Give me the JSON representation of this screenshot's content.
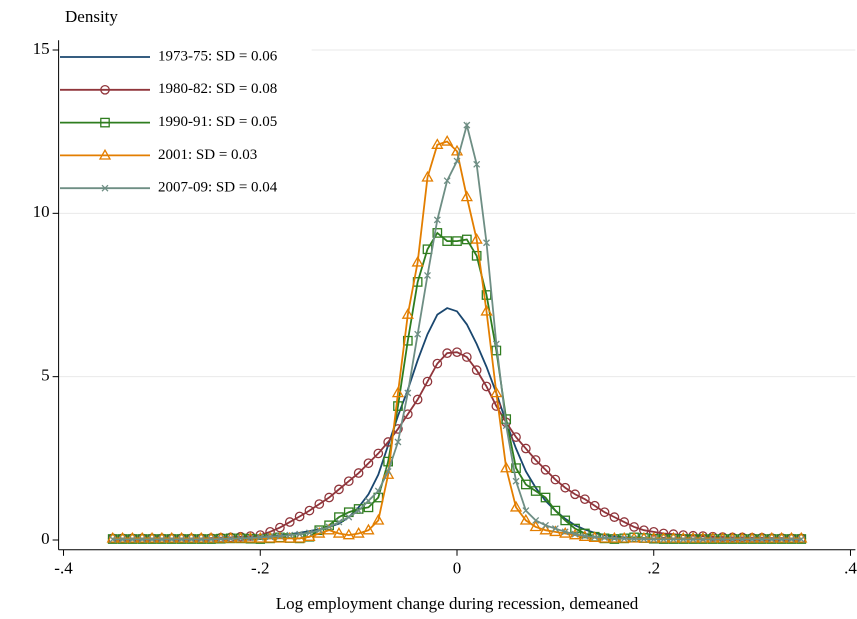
{
  "chart_data": {
    "type": "line",
    "y_label": "Density",
    "x_label": "Log employment change during recession, demeaned",
    "xlim": [
      -0.405,
      0.405
    ],
    "ylim": [
      -0.3,
      15.3
    ],
    "xticks": [
      {
        "value": -0.4,
        "label": "-.4"
      },
      {
        "value": -0.2,
        "label": "-.2"
      },
      0,
      {
        "value": 0.2,
        "label": ".2"
      },
      {
        "value": 0.4,
        "label": ".4"
      }
    ],
    "yticks": [
      0,
      5,
      10,
      15
    ],
    "grid": true,
    "legend": "top-left",
    "x": [
      -0.35,
      -0.34,
      -0.33,
      -0.32,
      -0.31,
      -0.3,
      -0.29,
      -0.28,
      -0.27,
      -0.26,
      -0.25,
      -0.24,
      -0.23,
      -0.22,
      -0.21,
      -0.2,
      -0.19,
      -0.18,
      -0.17,
      -0.16,
      -0.15,
      -0.14,
      -0.13,
      -0.12,
      -0.11,
      -0.1,
      -0.09,
      -0.08,
      -0.07,
      -0.06,
      -0.05,
      -0.04,
      -0.03,
      -0.02,
      -0.01,
      0,
      0.01,
      0.02,
      0.03,
      0.04,
      0.05,
      0.06,
      0.07,
      0.08,
      0.09,
      0.1,
      0.11,
      0.12,
      0.13,
      0.14,
      0.15,
      0.16,
      0.17,
      0.18,
      0.19,
      0.2,
      0.21,
      0.22,
      0.23,
      0.24,
      0.25,
      0.26,
      0.27,
      0.28,
      0.29,
      0.3,
      0.31,
      0.32,
      0.33,
      0.34,
      0.35
    ],
    "series": [
      {
        "name": "1973-75: SD = 0.06",
        "color": "#1a476f",
        "marker": "none",
        "values": [
          0.01,
          0.01,
          0.01,
          0.01,
          0.01,
          0.01,
          0.01,
          0.01,
          0.01,
          0.01,
          0.02,
          0.03,
          0.04,
          0.05,
          0.07,
          0.09,
          0.11,
          0.14,
          0.18,
          0.22,
          0.27,
          0.33,
          0.4,
          0.5,
          0.7,
          1.0,
          1.4,
          2.0,
          2.9,
          3.8,
          4.6,
          5.5,
          6.3,
          6.9,
          7.1,
          7.0,
          6.6,
          6.0,
          5.3,
          4.5,
          3.6,
          2.8,
          2.1,
          1.6,
          1.2,
          0.9,
          0.65,
          0.45,
          0.32,
          0.22,
          0.15,
          0.11,
          0.08,
          0.06,
          0.05,
          0.04,
          0.03,
          0.03,
          0.02,
          0.02,
          0.02,
          0.01,
          0.01,
          0.01,
          0.01,
          0.01,
          0.01,
          0.01,
          0.01,
          0.01,
          0.01
        ]
      },
      {
        "name": "1980-82: SD = 0.08",
        "color": "#90353b",
        "marker": "circle",
        "values": [
          0.05,
          0.05,
          0.05,
          0.05,
          0.05,
          0.05,
          0.05,
          0.05,
          0.05,
          0.05,
          0.06,
          0.07,
          0.08,
          0.1,
          0.12,
          0.15,
          0.25,
          0.38,
          0.55,
          0.72,
          0.9,
          1.1,
          1.3,
          1.55,
          1.8,
          2.05,
          2.35,
          2.65,
          3.0,
          3.4,
          3.85,
          4.3,
          4.85,
          5.4,
          5.72,
          5.75,
          5.6,
          5.2,
          4.7,
          4.1,
          3.6,
          3.15,
          2.8,
          2.45,
          2.15,
          1.85,
          1.6,
          1.4,
          1.25,
          1.05,
          0.85,
          0.7,
          0.55,
          0.4,
          0.3,
          0.25,
          0.2,
          0.18,
          0.15,
          0.13,
          0.12,
          0.1,
          0.09,
          0.08,
          0.08,
          0.07,
          0.07,
          0.06,
          0.06,
          0.05,
          0.05
        ]
      },
      {
        "name": "1990-91: SD = 0.05",
        "color": "#2f7d1f",
        "marker": "square",
        "values": [
          0.03,
          0.03,
          0.03,
          0.03,
          0.03,
          0.03,
          0.03,
          0.03,
          0.03,
          0.03,
          0.03,
          0.04,
          0.05,
          0.05,
          0.04,
          0.03,
          0.05,
          0.08,
          0.06,
          0.05,
          0.1,
          0.3,
          0.45,
          0.7,
          0.85,
          0.95,
          1.0,
          1.3,
          2.4,
          4.1,
          6.1,
          7.9,
          8.9,
          9.4,
          9.15,
          9.15,
          9.2,
          8.7,
          7.5,
          5.8,
          3.7,
          2.2,
          1.7,
          1.5,
          1.3,
          0.9,
          0.6,
          0.35,
          0.2,
          0.1,
          0.05,
          0.03,
          0.05,
          0.08,
          0.06,
          0.04,
          0.03,
          0.03,
          0.03,
          0.03,
          0.03,
          0.03,
          0.03,
          0.03,
          0.03,
          0.03,
          0.03,
          0.03,
          0.03,
          0.03,
          0.03
        ]
      },
      {
        "name": "2001: SD = 0.03",
        "color": "#e37e00",
        "marker": "triangle",
        "values": [
          0.05,
          0.05,
          0.05,
          0.05,
          0.05,
          0.05,
          0.05,
          0.05,
          0.05,
          0.05,
          0.05,
          0.05,
          0.05,
          0.05,
          0.05,
          0.05,
          0.05,
          0.05,
          0.05,
          0.05,
          0.1,
          0.2,
          0.3,
          0.2,
          0.15,
          0.2,
          0.3,
          0.6,
          2.0,
          4.5,
          6.9,
          8.5,
          11.1,
          12.1,
          12.2,
          11.9,
          10.5,
          9.2,
          7.0,
          4.5,
          2.2,
          1.0,
          0.6,
          0.4,
          0.3,
          0.25,
          0.2,
          0.15,
          0.1,
          0.07,
          0.05,
          0.05,
          0.05,
          0.05,
          0.05,
          0.05,
          0.05,
          0.05,
          0.05,
          0.05,
          0.05,
          0.05,
          0.05,
          0.05,
          0.05,
          0.05,
          0.05,
          0.05,
          0.05,
          0.05,
          0.05
        ]
      },
      {
        "name": "2007-09: SD = 0.04",
        "color": "#6e8e84",
        "marker": "x",
        "values": [
          0.02,
          0.02,
          0.02,
          0.02,
          0.02,
          0.02,
          0.02,
          0.02,
          0.02,
          0.02,
          0.02,
          0.03,
          0.04,
          0.05,
          0.06,
          0.08,
          0.1,
          0.12,
          0.15,
          0.18,
          0.22,
          0.3,
          0.4,
          0.55,
          0.7,
          0.9,
          1.2,
          1.5,
          2.1,
          3.0,
          4.5,
          6.3,
          8.1,
          9.8,
          11.0,
          11.6,
          12.7,
          11.5,
          9.1,
          6.0,
          3.5,
          1.8,
          0.9,
          0.6,
          0.45,
          0.35,
          0.25,
          0.18,
          0.12,
          0.09,
          0.07,
          0.05,
          0.04,
          0.03,
          0.03,
          0.02,
          0.02,
          0.02,
          0.02,
          0.02,
          0.02,
          0.02,
          0.02,
          0.02,
          0.02,
          0.02,
          0.02,
          0.02,
          0.02,
          0.02,
          0.02
        ]
      }
    ]
  }
}
